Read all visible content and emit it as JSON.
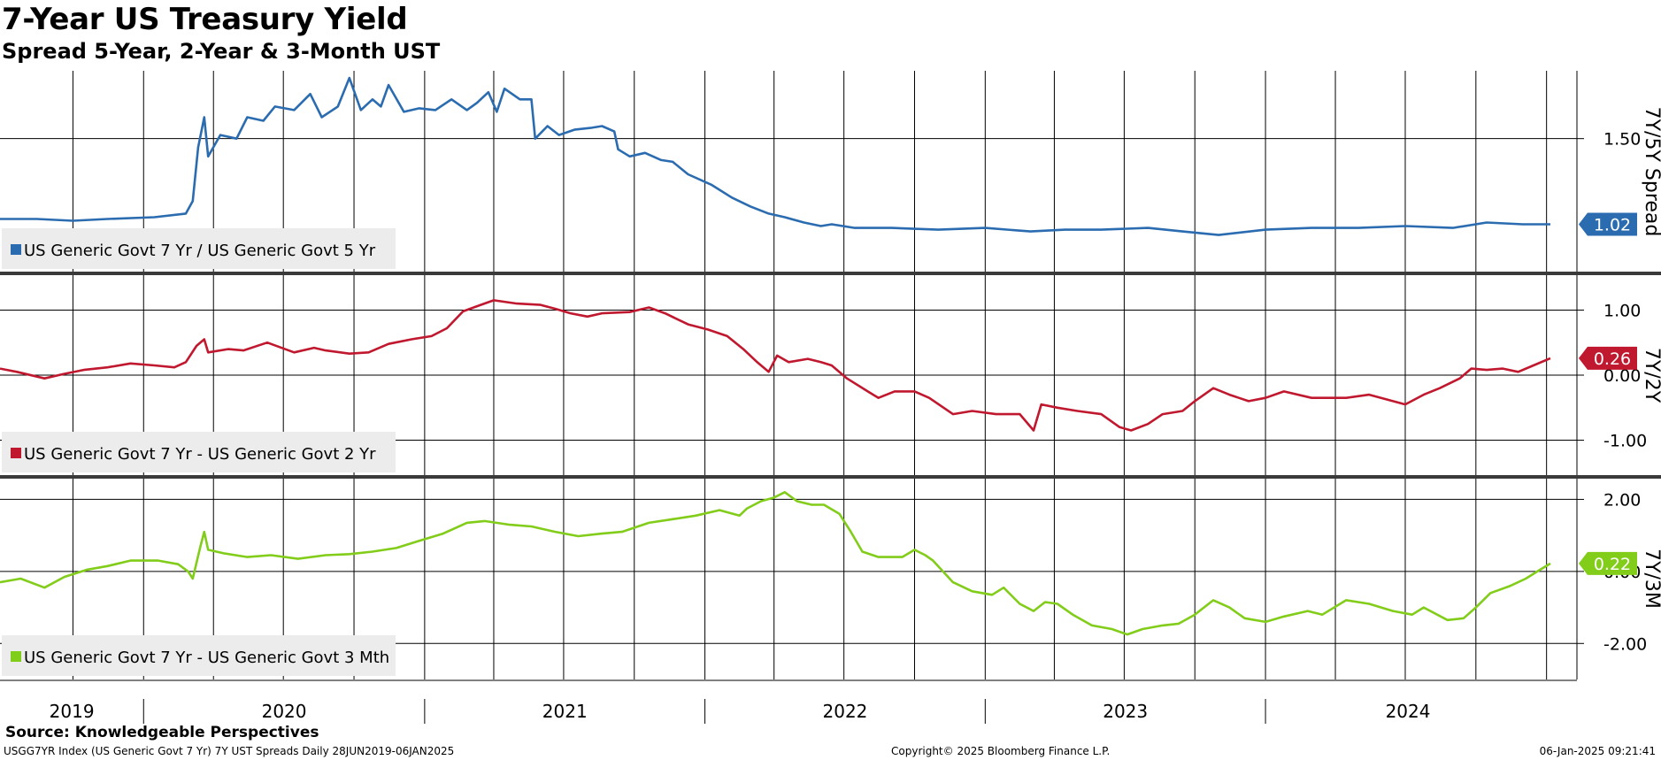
{
  "title": "7-Year US Treasury Yield",
  "subtitle": "Spread 5-Year, 2-Year & 3-Month UST",
  "source": "Source: Knowledgeable Perspectives",
  "footer": {
    "index_info": "USGG7YR Index (US Generic Govt 7 Yr) 7Y UST Spreads  Daily 28JUN2019-06JAN2025",
    "copyright": "Copyright© 2025 Bloomberg Finance L.P.",
    "timestamp": "06-Jan-2025 09:21:41"
  },
  "chart_data": {
    "type": "line",
    "x_axis": {
      "year_labels": [
        "2019",
        "2020",
        "2021",
        "2022",
        "2023",
        "2024"
      ],
      "range": [
        "2019-06-28",
        "2025-01-06"
      ]
    },
    "panels": [
      {
        "name": "7Y/5Y Spread",
        "axis_title": "7Y/5Y Spread",
        "legend": "US Generic Govt 7 Yr / US Generic Govt 5 Yr",
        "color": "#2b6cb0",
        "last_value_label": "1.02",
        "ylim": [
          0.75,
          1.88
        ],
        "yticks": [
          1.5
        ],
        "ytick_labels": [
          "1.50"
        ],
        "points": [
          [
            "2019-06-28",
            1.05
          ],
          [
            "2019-08-15",
            1.05
          ],
          [
            "2019-10-01",
            1.04
          ],
          [
            "2019-11-15",
            1.05
          ],
          [
            "2020-01-15",
            1.06
          ],
          [
            "2020-02-25",
            1.08
          ],
          [
            "2020-03-05",
            1.15
          ],
          [
            "2020-03-12",
            1.45
          ],
          [
            "2020-03-20",
            1.62
          ],
          [
            "2020-03-25",
            1.4
          ],
          [
            "2020-04-10",
            1.52
          ],
          [
            "2020-05-01",
            1.5
          ],
          [
            "2020-05-15",
            1.62
          ],
          [
            "2020-06-05",
            1.6
          ],
          [
            "2020-06-20",
            1.68
          ],
          [
            "2020-07-15",
            1.66
          ],
          [
            "2020-08-05",
            1.75
          ],
          [
            "2020-08-20",
            1.62
          ],
          [
            "2020-09-10",
            1.68
          ],
          [
            "2020-09-25",
            1.84
          ],
          [
            "2020-10-10",
            1.66
          ],
          [
            "2020-10-25",
            1.72
          ],
          [
            "2020-11-05",
            1.68
          ],
          [
            "2020-11-15",
            1.8
          ],
          [
            "2020-12-05",
            1.65
          ],
          [
            "2020-12-25",
            1.67
          ],
          [
            "2021-01-15",
            1.66
          ],
          [
            "2021-02-05",
            1.72
          ],
          [
            "2021-02-25",
            1.66
          ],
          [
            "2021-03-10",
            1.7
          ],
          [
            "2021-03-25",
            1.76
          ],
          [
            "2021-04-05",
            1.65
          ],
          [
            "2021-04-15",
            1.78
          ],
          [
            "2021-05-05",
            1.72
          ],
          [
            "2021-05-20",
            1.72
          ],
          [
            "2021-05-25",
            1.5
          ],
          [
            "2021-06-10",
            1.57
          ],
          [
            "2021-06-25",
            1.52
          ],
          [
            "2021-07-15",
            1.55
          ],
          [
            "2021-08-05",
            1.56
          ],
          [
            "2021-08-20",
            1.57
          ],
          [
            "2021-09-05",
            1.54
          ],
          [
            "2021-09-10",
            1.44
          ],
          [
            "2021-09-25",
            1.4
          ],
          [
            "2021-10-15",
            1.42
          ],
          [
            "2021-11-05",
            1.38
          ],
          [
            "2021-11-20",
            1.37
          ],
          [
            "2021-12-10",
            1.3
          ],
          [
            "2022-01-10",
            1.24
          ],
          [
            "2022-02-05",
            1.17
          ],
          [
            "2022-03-01",
            1.12
          ],
          [
            "2022-03-25",
            1.08
          ],
          [
            "2022-04-15",
            1.06
          ],
          [
            "2022-05-10",
            1.03
          ],
          [
            "2022-06-01",
            1.01
          ],
          [
            "2022-06-15",
            1.02
          ],
          [
            "2022-07-15",
            1.0
          ],
          [
            "2022-09-01",
            1.0
          ],
          [
            "2022-11-01",
            0.99
          ],
          [
            "2023-01-01",
            1.0
          ],
          [
            "2023-03-01",
            0.98
          ],
          [
            "2023-04-15",
            0.99
          ],
          [
            "2023-06-01",
            0.99
          ],
          [
            "2023-08-01",
            1.0
          ],
          [
            "2023-09-15",
            0.98
          ],
          [
            "2023-11-01",
            0.96
          ],
          [
            "2024-01-01",
            0.99
          ],
          [
            "2024-03-01",
            1.0
          ],
          [
            "2024-05-01",
            1.0
          ],
          [
            "2024-07-01",
            1.01
          ],
          [
            "2024-09-01",
            1.0
          ],
          [
            "2024-10-15",
            1.03
          ],
          [
            "2024-12-01",
            1.02
          ],
          [
            "2025-01-06",
            1.02
          ]
        ]
      },
      {
        "name": "7Y/2Y",
        "axis_title": "7Y/2Y",
        "legend": "US Generic Govt 7 Yr - US Generic Govt 2 Yr",
        "color": "#c0182e",
        "last_value_label": "0.26",
        "ylim": [
          -1.55,
          1.55
        ],
        "yticks": [
          1.0,
          0.0,
          -1.0
        ],
        "ytick_labels": [
          "1.00",
          "0.00",
          "-1.00"
        ],
        "points": [
          [
            "2019-06-28",
            0.1
          ],
          [
            "2019-07-20",
            0.05
          ],
          [
            "2019-08-25",
            -0.05
          ],
          [
            "2019-09-20",
            0.02
          ],
          [
            "2019-10-15",
            0.08
          ],
          [
            "2019-11-15",
            0.12
          ],
          [
            "2019-12-15",
            0.18
          ],
          [
            "2020-01-15",
            0.15
          ],
          [
            "2020-02-10",
            0.12
          ],
          [
            "2020-02-25",
            0.2
          ],
          [
            "2020-03-10",
            0.45
          ],
          [
            "2020-03-20",
            0.55
          ],
          [
            "2020-03-25",
            0.35
          ],
          [
            "2020-04-20",
            0.4
          ],
          [
            "2020-05-10",
            0.38
          ],
          [
            "2020-06-10",
            0.5
          ],
          [
            "2020-07-15",
            0.35
          ],
          [
            "2020-08-10",
            0.42
          ],
          [
            "2020-08-25",
            0.38
          ],
          [
            "2020-09-25",
            0.33
          ],
          [
            "2020-10-20",
            0.35
          ],
          [
            "2020-11-15",
            0.48
          ],
          [
            "2020-12-15",
            0.55
          ],
          [
            "2021-01-10",
            0.6
          ],
          [
            "2021-01-30",
            0.72
          ],
          [
            "2021-02-20",
            0.98
          ],
          [
            "2021-03-15",
            1.08
          ],
          [
            "2021-04-01",
            1.15
          ],
          [
            "2021-05-01",
            1.1
          ],
          [
            "2021-06-01",
            1.08
          ],
          [
            "2021-06-20",
            1.02
          ],
          [
            "2021-07-10",
            0.95
          ],
          [
            "2021-08-01",
            0.9
          ],
          [
            "2021-08-20",
            0.95
          ],
          [
            "2021-09-25",
            0.97
          ],
          [
            "2021-10-20",
            1.04
          ],
          [
            "2021-11-10",
            0.95
          ],
          [
            "2021-12-10",
            0.78
          ],
          [
            "2022-01-05",
            0.7
          ],
          [
            "2022-01-30",
            0.6
          ],
          [
            "2022-02-20",
            0.4
          ],
          [
            "2022-03-10",
            0.2
          ],
          [
            "2022-03-25",
            0.05
          ],
          [
            "2022-04-05",
            0.3
          ],
          [
            "2022-04-20",
            0.2
          ],
          [
            "2022-05-15",
            0.25
          ],
          [
            "2022-06-01",
            0.2
          ],
          [
            "2022-06-15",
            0.15
          ],
          [
            "2022-07-05",
            -0.05
          ],
          [
            "2022-08-01",
            -0.25
          ],
          [
            "2022-08-15",
            -0.35
          ],
          [
            "2022-09-05",
            -0.25
          ],
          [
            "2022-10-01",
            -0.25
          ],
          [
            "2022-10-20",
            -0.35
          ],
          [
            "2022-11-20",
            -0.6
          ],
          [
            "2022-12-15",
            -0.55
          ],
          [
            "2023-01-15",
            -0.6
          ],
          [
            "2023-02-15",
            -0.6
          ],
          [
            "2023-03-05",
            -0.85
          ],
          [
            "2023-03-15",
            -0.45
          ],
          [
            "2023-04-05",
            -0.5
          ],
          [
            "2023-05-01",
            -0.55
          ],
          [
            "2023-06-01",
            -0.6
          ],
          [
            "2023-06-25",
            -0.8
          ],
          [
            "2023-07-10",
            -0.85
          ],
          [
            "2023-08-01",
            -0.75
          ],
          [
            "2023-08-20",
            -0.6
          ],
          [
            "2023-09-15",
            -0.55
          ],
          [
            "2023-10-01",
            -0.4
          ],
          [
            "2023-10-25",
            -0.2
          ],
          [
            "2023-11-15",
            -0.3
          ],
          [
            "2023-12-10",
            -0.4
          ],
          [
            "2024-01-01",
            -0.35
          ],
          [
            "2024-01-25",
            -0.25
          ],
          [
            "2024-03-01",
            -0.35
          ],
          [
            "2024-04-15",
            -0.35
          ],
          [
            "2024-05-15",
            -0.3
          ],
          [
            "2024-06-15",
            -0.4
          ],
          [
            "2024-07-01",
            -0.45
          ],
          [
            "2024-07-25",
            -0.3
          ],
          [
            "2024-08-15",
            -0.2
          ],
          [
            "2024-09-10",
            -0.05
          ],
          [
            "2024-09-25",
            0.1
          ],
          [
            "2024-10-15",
            0.08
          ],
          [
            "2024-11-05",
            0.1
          ],
          [
            "2024-11-25",
            0.05
          ],
          [
            "2024-12-15",
            0.15
          ],
          [
            "2025-01-06",
            0.26
          ]
        ]
      },
      {
        "name": "7Y/3M",
        "axis_title": "7Y/3M",
        "legend": "US Generic Govt 7 Yr - US Generic Govt 3 Mth",
        "color": "#82cc1a",
        "last_value_label": "0.22",
        "ylim": [
          -3.0,
          2.6
        ],
        "yticks": [
          2.0,
          0.0,
          -2.0
        ],
        "ytick_labels": [
          "2.00",
          "0.00",
          "-2.00"
        ],
        "points": [
          [
            "2019-06-28",
            -0.3
          ],
          [
            "2019-07-25",
            -0.2
          ],
          [
            "2019-08-25",
            -0.45
          ],
          [
            "2019-09-20",
            -0.15
          ],
          [
            "2019-10-20",
            0.05
          ],
          [
            "2019-11-15",
            0.15
          ],
          [
            "2019-12-15",
            0.3
          ],
          [
            "2020-01-20",
            0.3
          ],
          [
            "2020-02-15",
            0.2
          ],
          [
            "2020-02-28",
            0.0
          ],
          [
            "2020-03-05",
            -0.2
          ],
          [
            "2020-03-15",
            0.7
          ],
          [
            "2020-03-20",
            1.1
          ],
          [
            "2020-03-25",
            0.6
          ],
          [
            "2020-04-15",
            0.5
          ],
          [
            "2020-05-15",
            0.4
          ],
          [
            "2020-06-15",
            0.45
          ],
          [
            "2020-07-20",
            0.35
          ],
          [
            "2020-08-25",
            0.45
          ],
          [
            "2020-09-25",
            0.48
          ],
          [
            "2020-10-25",
            0.55
          ],
          [
            "2020-11-25",
            0.65
          ],
          [
            "2020-12-25",
            0.85
          ],
          [
            "2021-01-25",
            1.05
          ],
          [
            "2021-02-25",
            1.35
          ],
          [
            "2021-03-20",
            1.4
          ],
          [
            "2021-04-20",
            1.3
          ],
          [
            "2021-05-20",
            1.25
          ],
          [
            "2021-06-20",
            1.1
          ],
          [
            "2021-07-20",
            0.98
          ],
          [
            "2021-08-20",
            1.05
          ],
          [
            "2021-09-15",
            1.1
          ],
          [
            "2021-10-20",
            1.35
          ],
          [
            "2021-11-20",
            1.45
          ],
          [
            "2021-12-20",
            1.55
          ],
          [
            "2022-01-20",
            1.7
          ],
          [
            "2022-02-15",
            1.55
          ],
          [
            "2022-02-25",
            1.75
          ],
          [
            "2022-03-15",
            1.95
          ],
          [
            "2022-04-01",
            2.05
          ],
          [
            "2022-04-15",
            2.2
          ],
          [
            "2022-05-01",
            1.95
          ],
          [
            "2022-05-20",
            1.85
          ],
          [
            "2022-06-05",
            1.85
          ],
          [
            "2022-06-25",
            1.6
          ],
          [
            "2022-07-10",
            1.1
          ],
          [
            "2022-07-25",
            0.55
          ],
          [
            "2022-08-15",
            0.4
          ],
          [
            "2022-09-15",
            0.4
          ],
          [
            "2022-10-01",
            0.6
          ],
          [
            "2022-10-15",
            0.45
          ],
          [
            "2022-10-25",
            0.3
          ],
          [
            "2022-11-20",
            -0.3
          ],
          [
            "2022-12-15",
            -0.55
          ],
          [
            "2023-01-10",
            -0.65
          ],
          [
            "2023-01-25",
            -0.45
          ],
          [
            "2023-02-15",
            -0.9
          ],
          [
            "2023-03-05",
            -1.1
          ],
          [
            "2023-03-20",
            -0.85
          ],
          [
            "2023-04-05",
            -0.9
          ],
          [
            "2023-04-25",
            -1.2
          ],
          [
            "2023-05-20",
            -1.5
          ],
          [
            "2023-06-15",
            -1.6
          ],
          [
            "2023-07-05",
            -1.75
          ],
          [
            "2023-07-25",
            -1.6
          ],
          [
            "2023-08-20",
            -1.5
          ],
          [
            "2023-09-10",
            -1.45
          ],
          [
            "2023-10-01",
            -1.2
          ],
          [
            "2023-10-25",
            -0.8
          ],
          [
            "2023-11-15",
            -1.0
          ],
          [
            "2023-12-05",
            -1.3
          ],
          [
            "2024-01-01",
            -1.4
          ],
          [
            "2024-01-25",
            -1.25
          ],
          [
            "2024-02-25",
            -1.1
          ],
          [
            "2024-03-15",
            -1.2
          ],
          [
            "2024-04-15",
            -0.8
          ],
          [
            "2024-05-15",
            -0.9
          ],
          [
            "2024-06-15",
            -1.1
          ],
          [
            "2024-07-10",
            -1.2
          ],
          [
            "2024-07-25",
            -1.0
          ],
          [
            "2024-08-25",
            -1.35
          ],
          [
            "2024-09-15",
            -1.3
          ],
          [
            "2024-10-01",
            -1.0
          ],
          [
            "2024-10-20",
            -0.6
          ],
          [
            "2024-11-15",
            -0.4
          ],
          [
            "2024-12-05",
            -0.2
          ],
          [
            "2024-12-20",
            0.0
          ],
          [
            "2025-01-06",
            0.22
          ]
        ]
      }
    ]
  }
}
